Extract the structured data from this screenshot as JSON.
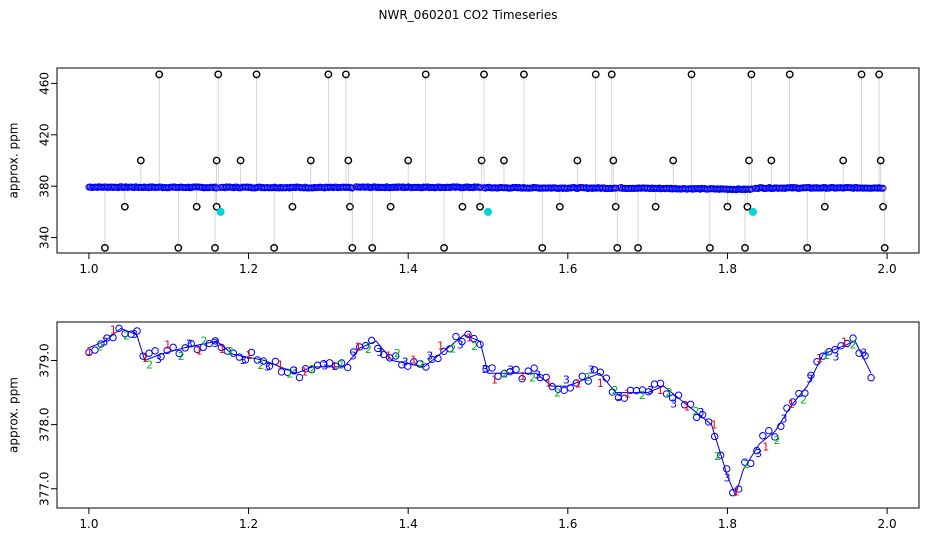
{
  "title": "NWR_060201  CO2 Timeseries",
  "chart_data": [
    {
      "type": "scatter",
      "ylabel": "approx. ppm",
      "xlim": [
        0.96,
        2.04
      ],
      "ylim": [
        328,
        472
      ],
      "x_ticks": [
        1.0,
        1.2,
        1.4,
        1.6,
        1.8,
        2.0
      ],
      "y_ticks": [
        340,
        380,
        420,
        460
      ],
      "baseline_segments": [
        {
          "x": [
            1.0,
            1.16
          ],
          "y": [
            379.3,
            379.0
          ]
        },
        {
          "x": [
            1.165,
            1.33
          ],
          "y": [
            379.1,
            378.9
          ]
        },
        {
          "x": [
            1.335,
            1.49
          ],
          "y": [
            379.2,
            379.1
          ]
        },
        {
          "x": [
            1.495,
            1.66
          ],
          "y": [
            378.8,
            378.5
          ]
        },
        {
          "x": [
            1.665,
            1.83
          ],
          "y": [
            378.6,
            377.5
          ]
        },
        {
          "x": [
            1.835,
            1.995
          ],
          "y": [
            378.6,
            378.7
          ]
        }
      ],
      "spikes": [
        {
          "x": 1.02,
          "y": 332
        },
        {
          "x": 1.045,
          "y": 364
        },
        {
          "x": 1.065,
          "y": 400
        },
        {
          "x": 1.088,
          "y": 467
        },
        {
          "x": 1.112,
          "y": 332
        },
        {
          "x": 1.135,
          "y": 364
        },
        {
          "x": 1.158,
          "y": 332
        },
        {
          "x": 1.16,
          "y": 364
        },
        {
          "x": 1.16,
          "y": 400
        },
        {
          "x": 1.162,
          "y": 467
        },
        {
          "x": 1.19,
          "y": 400
        },
        {
          "x": 1.21,
          "y": 467
        },
        {
          "x": 1.232,
          "y": 332
        },
        {
          "x": 1.255,
          "y": 364
        },
        {
          "x": 1.278,
          "y": 400
        },
        {
          "x": 1.3,
          "y": 467
        },
        {
          "x": 1.322,
          "y": 467
        },
        {
          "x": 1.325,
          "y": 400
        },
        {
          "x": 1.327,
          "y": 364
        },
        {
          "x": 1.33,
          "y": 332
        },
        {
          "x": 1.355,
          "y": 332
        },
        {
          "x": 1.378,
          "y": 364
        },
        {
          "x": 1.4,
          "y": 400
        },
        {
          "x": 1.422,
          "y": 467
        },
        {
          "x": 1.445,
          "y": 332
        },
        {
          "x": 1.468,
          "y": 364
        },
        {
          "x": 1.49,
          "y": 364
        },
        {
          "x": 1.492,
          "y": 400
        },
        {
          "x": 1.495,
          "y": 467
        },
        {
          "x": 1.52,
          "y": 400
        },
        {
          "x": 1.545,
          "y": 467
        },
        {
          "x": 1.568,
          "y": 332
        },
        {
          "x": 1.59,
          "y": 364
        },
        {
          "x": 1.612,
          "y": 400
        },
        {
          "x": 1.635,
          "y": 467
        },
        {
          "x": 1.655,
          "y": 467
        },
        {
          "x": 1.657,
          "y": 400
        },
        {
          "x": 1.66,
          "y": 364
        },
        {
          "x": 1.662,
          "y": 332
        },
        {
          "x": 1.688,
          "y": 332
        },
        {
          "x": 1.71,
          "y": 364
        },
        {
          "x": 1.732,
          "y": 400
        },
        {
          "x": 1.755,
          "y": 467
        },
        {
          "x": 1.778,
          "y": 332
        },
        {
          "x": 1.8,
          "y": 364
        },
        {
          "x": 1.822,
          "y": 332
        },
        {
          "x": 1.825,
          "y": 364
        },
        {
          "x": 1.827,
          "y": 400
        },
        {
          "x": 1.83,
          "y": 467
        },
        {
          "x": 1.855,
          "y": 400
        },
        {
          "x": 1.878,
          "y": 467
        },
        {
          "x": 1.9,
          "y": 332
        },
        {
          "x": 1.922,
          "y": 364
        },
        {
          "x": 1.945,
          "y": 400
        },
        {
          "x": 1.968,
          "y": 467
        },
        {
          "x": 1.99,
          "y": 467
        },
        {
          "x": 1.992,
          "y": 400
        },
        {
          "x": 1.995,
          "y": 364
        },
        {
          "x": 1.997,
          "y": 332
        }
      ],
      "cyan_points": [
        {
          "x": 1.165,
          "y": 360
        },
        {
          "x": 1.5,
          "y": 360
        },
        {
          "x": 1.832,
          "y": 360
        }
      ],
      "colors": {
        "circle": "#0000ff",
        "dot_green": "#00cc00",
        "dot_orange": "#ff8c00",
        "spike_circle": "#000000",
        "spike_line": "#999999",
        "cyan": "#00d4d4"
      }
    },
    {
      "type": "scatter",
      "ylabel": "approx. ppm",
      "xlim": [
        0.96,
        2.04
      ],
      "ylim": [
        376.7,
        379.6
      ],
      "x_ticks": [
        1.0,
        1.2,
        1.4,
        1.6,
        1.8,
        2.0
      ],
      "y_ticks": [
        377.0,
        378.0,
        379.0
      ],
      "marker_labels": [
        "1",
        "2",
        "3"
      ],
      "series_colors": {
        "1": "#ff0000",
        "2": "#00bb00",
        "3": "#0000ff",
        "circle": "#0000ff",
        "line": "#0000cc"
      },
      "trend": {
        "x": [
          1.0,
          1.02,
          1.04,
          1.06,
          1.07,
          1.09,
          1.12,
          1.16,
          1.18,
          1.22,
          1.26,
          1.28,
          1.32,
          1.34,
          1.36,
          1.38,
          1.42,
          1.45,
          1.47,
          1.49,
          1.5,
          1.53,
          1.56,
          1.58,
          1.6,
          1.62,
          1.64,
          1.66,
          1.68,
          1.7,
          1.72,
          1.74,
          1.76,
          1.78,
          1.79,
          1.8,
          1.81,
          1.82,
          1.84,
          1.86,
          1.88,
          1.9,
          1.92,
          1.94,
          1.96,
          1.98
        ],
        "y": [
          379.2,
          379.3,
          379.5,
          379.4,
          379.0,
          379.1,
          379.2,
          379.3,
          379.1,
          379.0,
          378.8,
          378.9,
          378.9,
          379.2,
          379.3,
          379.0,
          378.9,
          379.2,
          379.4,
          379.3,
          378.8,
          378.8,
          378.8,
          378.6,
          378.6,
          378.7,
          378.8,
          378.5,
          378.5,
          378.5,
          378.6,
          378.4,
          378.2,
          378.0,
          377.6,
          377.2,
          376.9,
          377.3,
          377.7,
          377.9,
          378.3,
          378.6,
          379.1,
          379.2,
          379.3,
          378.8
        ]
      }
    }
  ]
}
